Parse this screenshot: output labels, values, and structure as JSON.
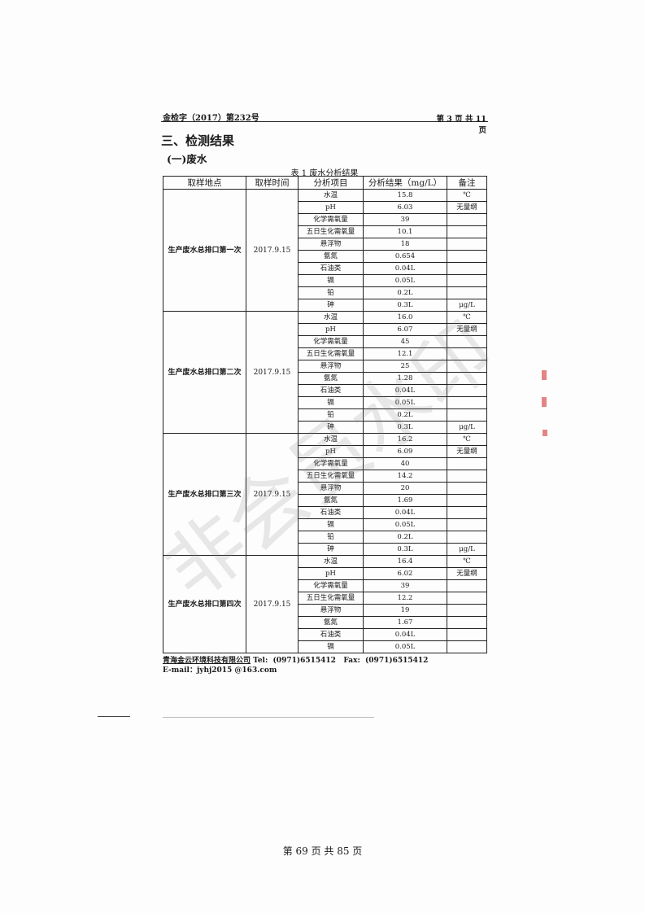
{
  "header": {
    "doc_no": "金检字（2017）第232号",
    "page": "第 3 页 共 11 页"
  },
  "section_title": "三、检测结果",
  "subsection_title": "(一)废水",
  "table": {
    "caption": "表 1 废水分析结果",
    "columns": [
      "取样地点",
      "取样时间",
      "分析项目",
      "分析结果（mg/L）",
      "备注"
    ],
    "groups": [
      {
        "site": "生产废水总排口第一次",
        "date": "2017.9.15",
        "rows": [
          [
            "水温",
            "15.8",
            "℃"
          ],
          [
            "pH",
            "6.03",
            "无量纲"
          ],
          [
            "化学需氧量",
            "39",
            ""
          ],
          [
            "五日生化需氧量",
            "10.1",
            ""
          ],
          [
            "悬浮物",
            "18",
            ""
          ],
          [
            "氨氮",
            "0.654",
            ""
          ],
          [
            "石油类",
            "0.04L",
            ""
          ],
          [
            "镉",
            "0.05L",
            ""
          ],
          [
            "铅",
            "0.2L",
            ""
          ],
          [
            "砷",
            "0.3L",
            "μg/L"
          ]
        ]
      },
      {
        "site": "生产废水总排口第二次",
        "date": "2017.9.15",
        "rows": [
          [
            "水温",
            "16.0",
            "℃"
          ],
          [
            "pH",
            "6.07",
            "无量纲"
          ],
          [
            "化学需氧量",
            "45",
            ""
          ],
          [
            "五日生化需氧量",
            "12.1",
            ""
          ],
          [
            "悬浮物",
            "25",
            ""
          ],
          [
            "氨氮",
            "1.28",
            ""
          ],
          [
            "石油类",
            "0.04L",
            ""
          ],
          [
            "镉",
            "0.05L",
            ""
          ],
          [
            "铅",
            "0.2L",
            ""
          ],
          [
            "砷",
            "0.3L",
            "μg/L"
          ]
        ]
      },
      {
        "site": "生产废水总排口第三次",
        "date": "2017.9.15",
        "rows": [
          [
            "水温",
            "16.2",
            "℃"
          ],
          [
            "pH",
            "6.09",
            "无量纲"
          ],
          [
            "化学需氧量",
            "40",
            ""
          ],
          [
            "五日生化需氧量",
            "14.2",
            ""
          ],
          [
            "悬浮物",
            "20",
            ""
          ],
          [
            "氨氮",
            "1.69",
            ""
          ],
          [
            "石油类",
            "0.04L",
            ""
          ],
          [
            "镉",
            "0.05L",
            ""
          ],
          [
            "铅",
            "0.2L",
            ""
          ],
          [
            "砷",
            "0.3L",
            "μg/L"
          ]
        ]
      },
      {
        "site": "生产废水总排口第四次",
        "date": "2017.9.15",
        "rows": [
          [
            "水温",
            "16.4",
            "℃"
          ],
          [
            "pH",
            "6.02",
            "无量纲"
          ],
          [
            "化学需氧量",
            "39",
            ""
          ],
          [
            "五日生化需氧量",
            "12.2",
            ""
          ],
          [
            "悬浮物",
            "19",
            ""
          ],
          [
            "氨氮",
            "1.67",
            ""
          ],
          [
            "石油类",
            "0.04L",
            ""
          ],
          [
            "镉",
            "0.05L",
            ""
          ]
        ]
      }
    ]
  },
  "footer": {
    "company": "青海金云环境科技有限公司",
    "contact": " Tel:  (0971)6515412   Fax:  (0971)6515412",
    "email": "E-mail：jyhj2015 @163.com"
  },
  "watermark": "非会员水印",
  "page_number": "第 69 页 共 85 页"
}
